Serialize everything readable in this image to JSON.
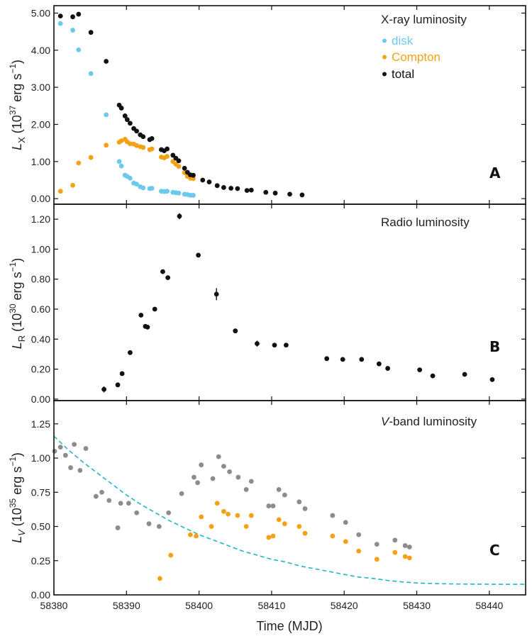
{
  "figure": {
    "xlabel": "Time (MJD)"
  },
  "chart_data": [
    {
      "type": "scatter",
      "panel_letter": "A",
      "title": "X-ray luminosity",
      "ylabel_main": "L",
      "ylabel_sub": "X",
      "ylabel_rest": " (10",
      "ylabel_exp": "37",
      "ylabel_units": " erg s",
      "ylabel_units_exp": "−1",
      "ylabel_close": ")",
      "xlim": [
        58380,
        58445
      ],
      "ylim": [
        -0.15,
        5.2
      ],
      "x_ticks": [
        58380,
        58390,
        58400,
        58410,
        58420,
        58430,
        58440
      ],
      "y_ticks": [
        0,
        1,
        2,
        3,
        4,
        5
      ],
      "y_tick_labels": [
        "0.00",
        "1.00",
        "2.00",
        "3.00",
        "4.00",
        "5.00"
      ],
      "legend_placement": "top-right",
      "series": [
        {
          "name": "disk",
          "color": "#6ac9ec",
          "points": [
            [
              58380.9,
              4.72
            ],
            [
              58382.6,
              4.54
            ],
            [
              58383.4,
              4.01
            ],
            [
              58385.1,
              3.37
            ],
            [
              58387.2,
              2.26
            ],
            [
              58389.0,
              1.0
            ],
            [
              58389.3,
              0.88
            ],
            [
              58389.8,
              0.63
            ],
            [
              58390.1,
              0.6
            ],
            [
              58390.5,
              0.55
            ],
            [
              58391.0,
              0.42
            ],
            [
              58391.4,
              0.39
            ],
            [
              58391.9,
              0.32
            ],
            [
              58392.3,
              0.29
            ],
            [
              58393.2,
              0.27
            ],
            [
              58393.5,
              0.28
            ],
            [
              58394.8,
              0.2
            ],
            [
              58395.2,
              0.19
            ],
            [
              58395.6,
              0.2
            ],
            [
              58396.4,
              0.17
            ],
            [
              58396.8,
              0.16
            ],
            [
              58397.2,
              0.15
            ],
            [
              58398.0,
              0.12
            ],
            [
              58398.4,
              0.11
            ],
            [
              58398.8,
              0.09
            ],
            [
              58399.2,
              0.09
            ]
          ]
        },
        {
          "name": "Compton",
          "color": "#f5a115",
          "points": [
            [
              58380.9,
              0.2
            ],
            [
              58382.6,
              0.36
            ],
            [
              58383.4,
              0.96
            ],
            [
              58385.1,
              1.11
            ],
            [
              58387.2,
              1.44
            ],
            [
              58389.0,
              1.52
            ],
            [
              58389.3,
              1.56
            ],
            [
              58389.8,
              1.6
            ],
            [
              58390.1,
              1.53
            ],
            [
              58390.5,
              1.48
            ],
            [
              58391.0,
              1.47
            ],
            [
              58391.4,
              1.43
            ],
            [
              58391.9,
              1.4
            ],
            [
              58392.3,
              1.38
            ],
            [
              58393.2,
              1.32
            ],
            [
              58393.5,
              1.34
            ],
            [
              58394.8,
              1.12
            ],
            [
              58395.2,
              1.1
            ],
            [
              58395.6,
              1.14
            ],
            [
              58396.4,
              1.0
            ],
            [
              58396.8,
              0.93
            ],
            [
              58397.2,
              0.87
            ],
            [
              58398.0,
              0.7
            ],
            [
              58398.4,
              0.6
            ],
            [
              58398.8,
              0.55
            ],
            [
              58399.2,
              0.54
            ]
          ]
        },
        {
          "name": "total",
          "color": "#111111",
          "points": [
            [
              58380.9,
              4.92
            ],
            [
              58382.6,
              4.9
            ],
            [
              58383.4,
              4.97
            ],
            [
              58385.1,
              4.48
            ],
            [
              58387.2,
              3.7
            ],
            [
              58389.0,
              2.52
            ],
            [
              58389.3,
              2.44
            ],
            [
              58389.8,
              2.23
            ],
            [
              58390.1,
              2.13
            ],
            [
              58390.5,
              2.03
            ],
            [
              58391.0,
              1.89
            ],
            [
              58391.4,
              1.82
            ],
            [
              58391.9,
              1.72
            ],
            [
              58392.3,
              1.67
            ],
            [
              58393.2,
              1.59
            ],
            [
              58393.5,
              1.62
            ],
            [
              58394.8,
              1.32
            ],
            [
              58395.2,
              1.29
            ],
            [
              58395.6,
              1.34
            ],
            [
              58396.4,
              1.17
            ],
            [
              58396.8,
              1.09
            ],
            [
              58397.2,
              1.02
            ],
            [
              58398.0,
              0.82
            ],
            [
              58398.4,
              0.71
            ],
            [
              58398.8,
              0.64
            ],
            [
              58399.2,
              0.63
            ],
            [
              58400.5,
              0.5
            ],
            [
              58401.4,
              0.45
            ],
            [
              58402.5,
              0.35
            ],
            [
              58403.4,
              0.3
            ],
            [
              58404.4,
              0.28
            ],
            [
              58405.3,
              0.27
            ],
            [
              58406.6,
              0.22
            ],
            [
              58407.2,
              0.23
            ],
            [
              58409.2,
              0.17
            ],
            [
              58410.5,
              0.15
            ],
            [
              58412.5,
              0.12
            ],
            [
              58414.2,
              0.1
            ]
          ]
        }
      ]
    },
    {
      "type": "scatter",
      "panel_letter": "B",
      "title": "Radio luminosity",
      "ylabel_main": "L",
      "ylabel_sub": "R",
      "ylabel_rest": " (10",
      "ylabel_exp": "30",
      "ylabel_units": " erg s",
      "ylabel_units_exp": "−1",
      "ylabel_close": ")",
      "xlim": [
        58380,
        58445
      ],
      "ylim": [
        -0.01,
        1.3
      ],
      "x_ticks": [
        58380,
        58390,
        58400,
        58410,
        58420,
        58430,
        58440
      ],
      "y_ticks": [
        0,
        0.2,
        0.4,
        0.6,
        0.8,
        1.0,
        1.2
      ],
      "y_tick_labels": [
        "0.00",
        "0.20",
        "0.40",
        "0.60",
        "0.80",
        "1.00",
        "1.20"
      ],
      "series": [
        {
          "color": "#111111",
          "points": [
            [
              58386.9,
              0.065,
              0.02
            ],
            [
              58388.8,
              0.095,
              0
            ],
            [
              58389.4,
              0.17,
              0
            ],
            [
              58390.5,
              0.31,
              0
            ],
            [
              58392.0,
              0.56,
              0
            ],
            [
              58392.6,
              0.485,
              0
            ],
            [
              58392.9,
              0.48,
              0
            ],
            [
              58393.9,
              0.6,
              0
            ],
            [
              58395.0,
              0.85,
              0
            ],
            [
              58395.7,
              0.81,
              0
            ],
            [
              58397.3,
              1.22,
              0.02
            ],
            [
              58399.9,
              0.96,
              0
            ],
            [
              58402.4,
              0.7,
              0.04
            ],
            [
              58405.0,
              0.455,
              0
            ],
            [
              58408.0,
              0.37,
              0.02
            ],
            [
              58410.4,
              0.36,
              0
            ],
            [
              58412.0,
              0.36,
              0
            ],
            [
              58417.6,
              0.27,
              0
            ],
            [
              58419.8,
              0.265,
              0
            ],
            [
              58422.4,
              0.265,
              0
            ],
            [
              58424.8,
              0.235,
              0
            ],
            [
              58426.0,
              0.205,
              0
            ],
            [
              58430.4,
              0.195,
              0
            ],
            [
              58432.2,
              0.155,
              0
            ],
            [
              58436.6,
              0.165,
              0
            ],
            [
              58440.4,
              0.13,
              0
            ]
          ]
        }
      ]
    },
    {
      "type": "scatter",
      "panel_letter": "C",
      "title_italic": "V",
      "title": "-band luminosity",
      "ylabel_main": "L",
      "ylabel_sub": "V",
      "ylabel_rest": " (10",
      "ylabel_exp": "35",
      "ylabel_units": " erg s",
      "ylabel_units_exp": "−1",
      "ylabel_close": ")",
      "xlim": [
        58380,
        58445
      ],
      "ylim": [
        0,
        1.42
      ],
      "x_ticks": [
        58380,
        58390,
        58400,
        58410,
        58420,
        58430,
        58440
      ],
      "x_tick_labels": [
        "58380",
        "58390",
        "58400",
        "58410",
        "58420",
        "58430",
        "58440"
      ],
      "y_ticks": [
        0,
        0.25,
        0.5,
        0.75,
        1.0,
        1.25
      ],
      "y_tick_labels": [
        "0.00",
        "0.25",
        "0.50",
        "0.75",
        "1.00",
        "1.25"
      ],
      "series": [
        {
          "color": "#8c8c8c",
          "points": [
            [
              58380.1,
              1.05
            ],
            [
              58380.9,
              1.08
            ],
            [
              58381.6,
              1.02
            ],
            [
              58382.3,
              0.93
            ],
            [
              58382.8,
              1.1
            ],
            [
              58383.6,
              0.91
            ],
            [
              58384.4,
              1.07
            ],
            [
              58385.8,
              0.72
            ],
            [
              58386.6,
              0.75
            ],
            [
              58387.6,
              0.69
            ],
            [
              58388.8,
              0.49
            ],
            [
              58389.2,
              0.67
            ],
            [
              58390.3,
              0.67
            ],
            [
              58391.4,
              0.6
            ],
            [
              58393.1,
              0.52
            ],
            [
              58394.5,
              0.5
            ],
            [
              58395.8,
              0.6
            ],
            [
              58397.6,
              0.74
            ],
            [
              58399.3,
              0.86
            ],
            [
              58399.8,
              0.82
            ],
            [
              58400.3,
              0.95
            ],
            [
              58401.9,
              0.85
            ],
            [
              58402.7,
              1.01
            ],
            [
              58403.4,
              0.94
            ],
            [
              58404.2,
              0.9
            ],
            [
              58405.4,
              0.86
            ],
            [
              58406.5,
              0.77
            ],
            [
              58407.2,
              0.83
            ],
            [
              58409.6,
              0.65
            ],
            [
              58410.2,
              0.65
            ],
            [
              58411.0,
              0.77
            ],
            [
              58411.8,
              0.73
            ],
            [
              58413.8,
              0.68
            ],
            [
              58414.6,
              0.63
            ],
            [
              58418.4,
              0.58
            ],
            [
              58420.2,
              0.53
            ],
            [
              58422.0,
              0.44
            ],
            [
              58424.5,
              0.37
            ],
            [
              58427.0,
              0.4
            ],
            [
              58428.4,
              0.36
            ],
            [
              58429.0,
              0.35
            ]
          ]
        },
        {
          "color": "#f5a115",
          "points": [
            [
              58394.6,
              0.12
            ],
            [
              58396.1,
              0.29
            ],
            [
              58398.8,
              0.44
            ],
            [
              58399.6,
              0.43
            ],
            [
              58400.3,
              0.57
            ],
            [
              58401.7,
              0.5
            ],
            [
              58402.5,
              0.67
            ],
            [
              58403.4,
              0.61
            ],
            [
              58404.0,
              0.59
            ],
            [
              58405.3,
              0.58
            ],
            [
              58406.5,
              0.5
            ],
            [
              58407.2,
              0.58
            ],
            [
              58409.6,
              0.42
            ],
            [
              58410.2,
              0.43
            ],
            [
              58411.0,
              0.55
            ],
            [
              58411.8,
              0.52
            ],
            [
              58413.8,
              0.5
            ],
            [
              58414.6,
              0.45
            ],
            [
              58418.4,
              0.43
            ],
            [
              58420.2,
              0.39
            ],
            [
              58422.0,
              0.32
            ],
            [
              58424.5,
              0.26
            ],
            [
              58427.0,
              0.31
            ],
            [
              58428.4,
              0.28
            ],
            [
              58429.0,
              0.27
            ]
          ]
        }
      ],
      "model_curve": {
        "color": "#22b5c2",
        "style": "dashed",
        "points": [
          [
            58380,
            1.16
          ],
          [
            58382,
            1.06
          ],
          [
            58384,
            0.97
          ],
          [
            58386,
            0.89
          ],
          [
            58388,
            0.81
          ],
          [
            58390,
            0.73
          ],
          [
            58392,
            0.66
          ],
          [
            58394,
            0.6
          ],
          [
            58396,
            0.54
          ],
          [
            58398,
            0.49
          ],
          [
            58400,
            0.44
          ],
          [
            58402,
            0.4
          ],
          [
            58404,
            0.36
          ],
          [
            58406,
            0.32
          ],
          [
            58408,
            0.29
          ],
          [
            58410,
            0.26
          ],
          [
            58412,
            0.24
          ],
          [
            58414,
            0.21
          ],
          [
            58416,
            0.19
          ],
          [
            58418,
            0.17
          ],
          [
            58420,
            0.15
          ],
          [
            58422,
            0.13
          ],
          [
            58424,
            0.12
          ],
          [
            58426,
            0.105
          ],
          [
            58428,
            0.095
          ],
          [
            58430,
            0.087
          ],
          [
            58432,
            0.083
          ],
          [
            58435,
            0.08
          ],
          [
            58438,
            0.078
          ],
          [
            58442,
            0.077
          ],
          [
            58445,
            0.077
          ]
        ]
      }
    }
  ]
}
